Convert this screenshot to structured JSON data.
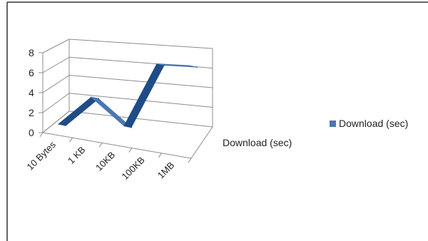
{
  "chart_data": {
    "type": "line",
    "style": "3d-ribbon",
    "categories": [
      "10 Bytes",
      "1 KB",
      "10KB",
      "100KB",
      "1MB"
    ],
    "series": [
      {
        "name": "Download (sec)",
        "values": [
          0.3,
          3.2,
          0.1,
          6.8,
          6.6
        ]
      }
    ],
    "ylim": [
      0,
      8
    ],
    "yticks": [
      0,
      2,
      4,
      6,
      8
    ],
    "depth_axis_label": "Download (sec)",
    "grid": true,
    "legend_position": "right",
    "colors": {
      "series": "#4a77b4",
      "series_dark": "#1f4c86",
      "grid": "#8c8c8c",
      "frame": "#333333"
    }
  }
}
